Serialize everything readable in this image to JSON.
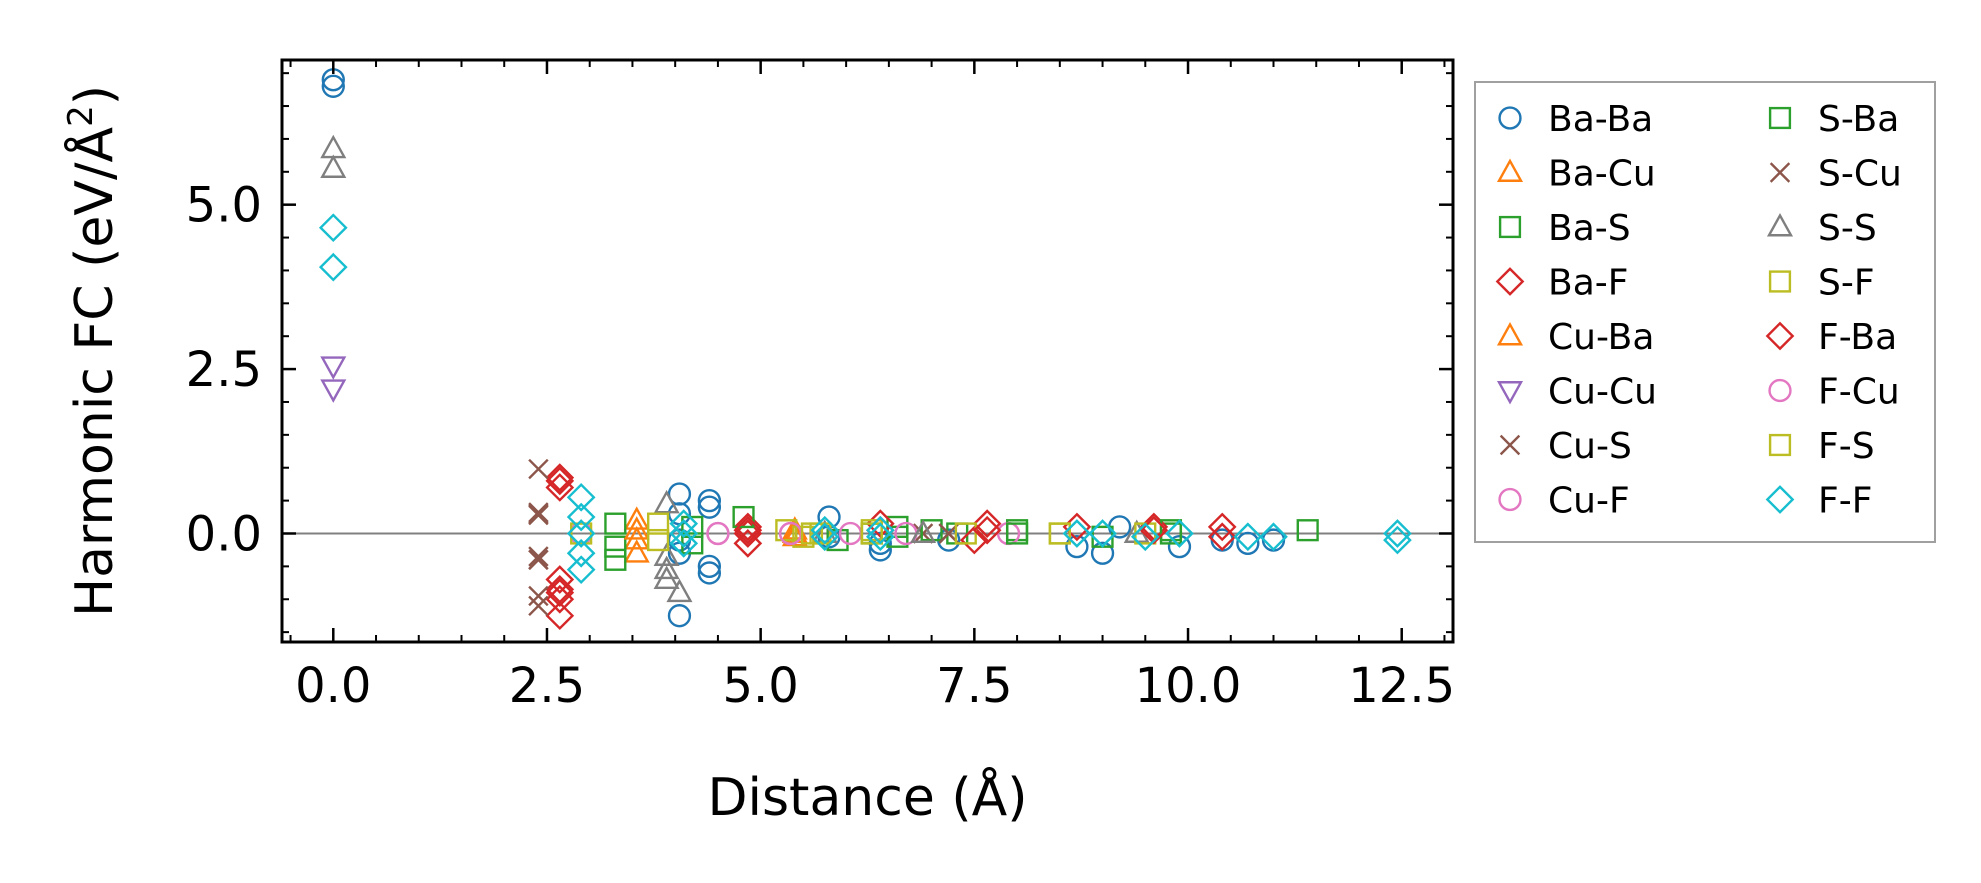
{
  "chart_data": {
    "type": "scatter",
    "title": "",
    "xlabel": "Distance (Å)",
    "ylabel_main": "Harmonic FC (eV/Å",
    "ylabel_sup": "2",
    "ylabel_end": ")",
    "xlim": [
      -0.6,
      13.1
    ],
    "ylim": [
      -1.65,
      7.2
    ],
    "xticks": [
      0.0,
      2.5,
      5.0,
      7.5,
      10.0,
      12.5
    ],
    "xtick_labels": [
      "0.0",
      "2.5",
      "5.0",
      "7.5",
      "10.0",
      "12.5"
    ],
    "yticks": [
      0.0,
      2.5,
      5.0
    ],
    "ytick_labels": [
      "0.0",
      "2.5",
      "5.0"
    ],
    "hline": 0,
    "legend_position": "right outside",
    "legend_columns": 2,
    "series": [
      {
        "name": "Ba-Ba",
        "marker": "circle",
        "color": "#1f77b4",
        "points": [
          [
            0.0,
            6.9
          ],
          [
            0.0,
            6.8
          ],
          [
            2.9,
            0.0
          ],
          [
            4.05,
            0.6
          ],
          [
            4.05,
            0.3
          ],
          [
            4.05,
            -0.1
          ],
          [
            4.05,
            -0.3
          ],
          [
            4.05,
            -1.25
          ],
          [
            4.4,
            0.5
          ],
          [
            4.4,
            0.4
          ],
          [
            4.4,
            -0.5
          ],
          [
            4.4,
            -0.6
          ],
          [
            5.8,
            0.25
          ],
          [
            5.8,
            -0.05
          ],
          [
            6.4,
            -0.15
          ],
          [
            6.4,
            -0.25
          ],
          [
            7.2,
            -0.1
          ],
          [
            8.7,
            -0.2
          ],
          [
            9.0,
            -0.3
          ],
          [
            9.2,
            0.1
          ],
          [
            9.9,
            -0.2
          ],
          [
            10.4,
            -0.1
          ],
          [
            10.7,
            -0.15
          ],
          [
            11.0,
            -0.1
          ]
        ]
      },
      {
        "name": "Ba-Cu",
        "marker": "triangle-up",
        "color": "#ff7f0e",
        "points": [
          [
            3.55,
            0.2
          ],
          [
            3.55,
            -0.1
          ],
          [
            3.55,
            -0.3
          ],
          [
            5.4,
            0.05
          ],
          [
            5.4,
            -0.05
          ]
        ]
      },
      {
        "name": "Ba-S",
        "marker": "square",
        "color": "#2ca02c",
        "points": [
          [
            3.3,
            0.15
          ],
          [
            3.3,
            -0.2
          ],
          [
            3.3,
            -0.4
          ],
          [
            4.2,
            0.1
          ],
          [
            4.2,
            -0.15
          ],
          [
            5.9,
            -0.1
          ],
          [
            6.6,
            0.1
          ],
          [
            6.6,
            -0.05
          ],
          [
            7.3,
            0.0
          ],
          [
            8.0,
            0.05
          ],
          [
            9.0,
            -0.05
          ],
          [
            9.8,
            0.0
          ],
          [
            11.4,
            0.05
          ]
        ]
      },
      {
        "name": "Ba-F",
        "marker": "diamond",
        "color": "#d62728",
        "points": [
          [
            2.65,
            0.85
          ],
          [
            2.65,
            0.7
          ],
          [
            2.65,
            -0.7
          ],
          [
            2.65,
            -0.85
          ],
          [
            2.65,
            -1.0
          ],
          [
            2.65,
            -1.25
          ],
          [
            4.85,
            0.1
          ],
          [
            4.85,
            0.0
          ],
          [
            4.85,
            -0.15
          ],
          [
            6.4,
            0.15
          ],
          [
            7.5,
            -0.1
          ],
          [
            7.65,
            0.15
          ],
          [
            8.7,
            0.1
          ],
          [
            9.6,
            0.1
          ],
          [
            10.4,
            0.1
          ],
          [
            10.4,
            -0.05
          ]
        ]
      },
      {
        "name": "Cu-Ba",
        "marker": "triangle-up",
        "color": "#ff7f0e",
        "points": [
          [
            3.55,
            0.05
          ],
          [
            5.4,
            0.0
          ]
        ]
      },
      {
        "name": "Cu-Cu",
        "marker": "triangle-down",
        "color": "#9467bd",
        "points": [
          [
            0.0,
            2.55
          ],
          [
            0.0,
            2.2
          ]
        ]
      },
      {
        "name": "Cu-S",
        "marker": "x",
        "color": "#8c564b",
        "points": [
          [
            2.4,
            0.98
          ],
          [
            2.4,
            0.32
          ],
          [
            2.4,
            0.28
          ],
          [
            2.4,
            -0.35
          ],
          [
            2.4,
            -0.4
          ],
          [
            2.4,
            -0.95
          ],
          [
            2.4,
            -1.1
          ],
          [
            6.9,
            0.0
          ],
          [
            7.2,
            0.0
          ]
        ]
      },
      {
        "name": "Cu-F",
        "marker": "circle",
        "color": "#e377c2",
        "points": [
          [
            2.9,
            0.0
          ],
          [
            4.5,
            0.0
          ],
          [
            5.35,
            0.0
          ],
          [
            6.05,
            0.0
          ],
          [
            6.7,
            0.0
          ],
          [
            7.9,
            0.0
          ]
        ]
      },
      {
        "name": "S-Ba",
        "marker": "square",
        "color": "#2ca02c",
        "points": [
          [
            4.8,
            0.25
          ],
          [
            6.3,
            0.0
          ],
          [
            7.0,
            0.05
          ],
          [
            8.0,
            0.0
          ],
          [
            9.8,
            0.05
          ]
        ]
      },
      {
        "name": "S-Cu",
        "marker": "x",
        "color": "#8c564b",
        "points": [
          [
            2.4,
            0.3
          ],
          [
            2.4,
            -0.4
          ],
          [
            7.2,
            0.0
          ]
        ]
      },
      {
        "name": "S-S",
        "marker": "triangle-up",
        "color": "#7f7f7f",
        "points": [
          [
            0.0,
            5.85
          ],
          [
            0.0,
            5.55
          ],
          [
            3.9,
            0.45
          ],
          [
            3.9,
            -0.35
          ],
          [
            3.9,
            -0.55
          ],
          [
            3.9,
            -0.7
          ],
          [
            4.05,
            -0.9
          ],
          [
            5.75,
            0.0
          ],
          [
            6.9,
            0.0
          ],
          [
            9.4,
            0.0
          ]
        ]
      },
      {
        "name": "S-F",
        "marker": "square",
        "color": "#bcbd22",
        "points": [
          [
            2.9,
            0.0
          ],
          [
            3.8,
            0.15
          ],
          [
            3.8,
            -0.1
          ],
          [
            5.3,
            0.05
          ],
          [
            5.5,
            -0.05
          ],
          [
            5.7,
            0.0
          ],
          [
            6.3,
            0.05
          ],
          [
            7.4,
            0.0
          ],
          [
            8.5,
            0.0
          ],
          [
            9.5,
            0.0
          ]
        ]
      },
      {
        "name": "F-Ba",
        "marker": "diamond",
        "color": "#d62728",
        "points": [
          [
            2.65,
            0.8
          ],
          [
            2.65,
            -0.9
          ],
          [
            4.85,
            0.05
          ],
          [
            6.4,
            0.05
          ],
          [
            7.65,
            0.05
          ],
          [
            9.6,
            0.05
          ]
        ]
      },
      {
        "name": "F-Cu",
        "marker": "circle",
        "color": "#e377c2",
        "points": [
          [
            4.5,
            0.0
          ],
          [
            5.35,
            0.0
          ]
        ]
      },
      {
        "name": "F-S",
        "marker": "square",
        "color": "#bcbd22",
        "points": [
          [
            5.6,
            0.0
          ],
          [
            6.3,
            0.0
          ],
          [
            8.5,
            0.0
          ]
        ]
      },
      {
        "name": "F-F",
        "marker": "diamond",
        "color": "#17becf",
        "points": [
          [
            0.0,
            4.65
          ],
          [
            0.0,
            4.05
          ],
          [
            2.9,
            0.55
          ],
          [
            2.9,
            0.25
          ],
          [
            2.9,
            0.0
          ],
          [
            2.9,
            -0.3
          ],
          [
            2.9,
            -0.55
          ],
          [
            4.1,
            0.15
          ],
          [
            4.1,
            0.0
          ],
          [
            4.1,
            -0.15
          ],
          [
            5.75,
            0.05
          ],
          [
            5.75,
            -0.05
          ],
          [
            6.4,
            0.05
          ],
          [
            6.4,
            -0.05
          ],
          [
            8.7,
            0.0
          ],
          [
            9.0,
            0.0
          ],
          [
            9.5,
            -0.05
          ],
          [
            9.9,
            0.0
          ],
          [
            10.7,
            -0.05
          ],
          [
            11.0,
            -0.05
          ],
          [
            12.45,
            0.0
          ],
          [
            12.45,
            -0.1
          ]
        ]
      }
    ]
  }
}
